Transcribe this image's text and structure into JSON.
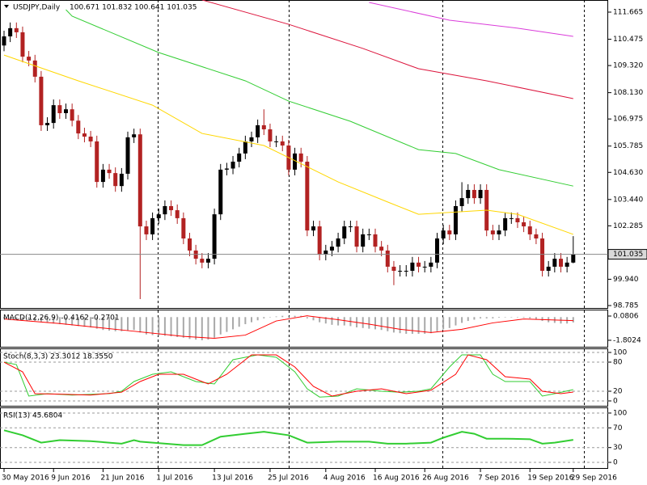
{
  "chart_data": [
    {
      "type": "candlestick",
      "title": "USDJPY,Daily",
      "ohlc_text": "100.671 101.832 100.641 101.035",
      "up_color": "#000000",
      "down_color": "#b22222",
      "categories": [
        "30 May 2016",
        null,
        null,
        null,
        null,
        null,
        null,
        null,
        "9 Jun 2016",
        null,
        null,
        null,
        null,
        null,
        null,
        null,
        "21 Jun 2016",
        null,
        null,
        null,
        null,
        null,
        null,
        null,
        null,
        "1 Jul 2016",
        null,
        null,
        null,
        null,
        null,
        null,
        null,
        null,
        "13 Jul 2016",
        null,
        null,
        null,
        null,
        null,
        null,
        null,
        null,
        "25 Jul 2016",
        null,
        null,
        null,
        null,
        null,
        null,
        null,
        null,
        "4 Aug 2016",
        null,
        null,
        null,
        null,
        null,
        null,
        null,
        "16 Aug 2016",
        null,
        null,
        null,
        null,
        null,
        null,
        null,
        "26 Aug 2016",
        null,
        null,
        null,
        null,
        null,
        null,
        null,
        null,
        "7 Sep 2016",
        null,
        null,
        null,
        null,
        null,
        null,
        null,
        "19 Sep 2016",
        null,
        null,
        null,
        null,
        null,
        null,
        "29 Sep 2016"
      ],
      "open": [
        110.2,
        110.6,
        110.96,
        110.78,
        109.71,
        109.54,
        108.83,
        106.7,
        106.8,
        107.58,
        107.23,
        107.4,
        106.9,
        106.34,
        106.2,
        105.99,
        104.21,
        104.75,
        104.6,
        104.03,
        104.57,
        106.17,
        106.3,
        102.26,
        101.91,
        102.62,
        102.79,
        103.15,
        102.97,
        102.62,
        101.73,
        101.2,
        100.84,
        100.67,
        100.84,
        102.79,
        104.75,
        104.8,
        105.1,
        105.46,
        105.99,
        106.17,
        106.7,
        106.52,
        105.99,
        105.99,
        105.81,
        104.75,
        105.46,
        105.1,
        102.08,
        102.26,
        101.02,
        101.2,
        101.37,
        101.73,
        102.26,
        102.26,
        101.37,
        101.91,
        101.91,
        101.37,
        101.2,
        100.49,
        100.31,
        100.31,
        100.31,
        100.67,
        100.49,
        100.49,
        100.67,
        101.73,
        102.08,
        101.91,
        103.15,
        103.5,
        103.86,
        103.5,
        103.86,
        102.08,
        101.91,
        102.08,
        102.62,
        102.62,
        102.44,
        102.26,
        101.91,
        101.73,
        100.31,
        100.49,
        100.84,
        100.49,
        100.671
      ],
      "high": [
        110.85,
        111.21,
        111.21,
        111.03,
        109.96,
        109.79,
        109.08,
        107.05,
        107.83,
        107.83,
        107.65,
        107.65,
        107.15,
        106.59,
        106.45,
        106.24,
        105.0,
        105.0,
        104.85,
        104.82,
        106.42,
        106.55,
        106.55,
        102.51,
        102.87,
        103.04,
        103.4,
        103.4,
        103.22,
        102.87,
        101.98,
        101.45,
        101.09,
        101.09,
        103.04,
        105.0,
        105.05,
        105.35,
        105.71,
        106.24,
        106.42,
        106.95,
        107.4,
        106.77,
        106.24,
        106.24,
        106.06,
        105.71,
        105.71,
        105.35,
        102.51,
        102.51,
        101.45,
        101.62,
        101.98,
        102.51,
        102.51,
        102.51,
        102.16,
        102.16,
        102.16,
        101.62,
        101.45,
        100.74,
        100.56,
        100.56,
        100.92,
        100.92,
        100.74,
        100.92,
        101.98,
        102.33,
        102.33,
        103.4,
        104.2,
        104.11,
        104.11,
        104.11,
        104.11,
        102.33,
        102.33,
        102.87,
        102.87,
        102.87,
        102.69,
        102.51,
        102.16,
        101.98,
        100.74,
        101.09,
        101.09,
        100.92,
        101.832
      ],
      "low": [
        109.95,
        110.35,
        110.53,
        109.46,
        109.29,
        108.58,
        106.45,
        106.45,
        106.55,
        106.98,
        106.98,
        106.65,
        106.09,
        105.95,
        105.74,
        103.96,
        103.96,
        104.35,
        103.78,
        103.78,
        104.32,
        105.92,
        99.07,
        101.66,
        101.66,
        102.37,
        102.54,
        102.72,
        102.37,
        101.48,
        100.95,
        100.59,
        100.42,
        100.42,
        100.59,
        102.54,
        104.5,
        104.55,
        104.85,
        105.21,
        105.74,
        105.92,
        106.27,
        105.74,
        105.74,
        105.56,
        104.5,
        104.5,
        104.85,
        101.83,
        101.83,
        100.77,
        100.77,
        100.95,
        101.12,
        101.48,
        102.01,
        101.12,
        101.12,
        101.66,
        101.12,
        100.95,
        100.24,
        99.68,
        100.06,
        100.06,
        100.06,
        100.24,
        100.24,
        100.24,
        100.42,
        101.48,
        101.66,
        101.66,
        102.9,
        103.25,
        103.25,
        103.25,
        101.83,
        101.66,
        101.66,
        101.83,
        102.37,
        102.19,
        102.01,
        101.66,
        101.48,
        100.06,
        100.06,
        100.24,
        100.24,
        100.24,
        100.641
      ],
      "close": [
        110.6,
        110.96,
        110.78,
        109.71,
        109.54,
        108.83,
        106.7,
        106.8,
        107.58,
        107.23,
        107.4,
        106.9,
        106.34,
        106.2,
        105.99,
        104.21,
        104.75,
        104.6,
        104.03,
        104.57,
        106.17,
        106.3,
        102.26,
        101.91,
        102.62,
        102.79,
        103.15,
        102.97,
        102.62,
        101.73,
        101.2,
        100.84,
        100.67,
        100.84,
        102.79,
        104.75,
        104.8,
        105.1,
        105.46,
        105.99,
        106.17,
        106.7,
        106.52,
        105.99,
        105.99,
        105.81,
        104.75,
        105.46,
        105.1,
        102.08,
        102.26,
        101.02,
        101.2,
        101.37,
        101.73,
        102.26,
        102.26,
        101.37,
        101.91,
        101.91,
        101.37,
        101.2,
        100.49,
        100.31,
        100.31,
        100.31,
        100.67,
        100.49,
        100.49,
        100.67,
        101.73,
        102.08,
        101.91,
        103.15,
        103.5,
        103.86,
        103.5,
        103.86,
        102.08,
        101.91,
        102.08,
        102.62,
        102.62,
        102.44,
        102.26,
        101.91,
        101.73,
        100.31,
        100.49,
        100.84,
        100.49,
        100.67,
        101.035
      ],
      "overlays": [
        {
          "color": "#ffd700",
          "x": [
            0,
            12,
            24,
            32,
            42,
            46,
            54,
            62,
            67,
            78,
            83,
            92
          ],
          "values": [
            109.78,
            108.65,
            107.58,
            106.34,
            105.81,
            105.28,
            104.21,
            103.33,
            102.79,
            102.97,
            102.79,
            101.91
          ]
        },
        {
          "color": "#32cd32",
          "x": [
            10,
            11,
            25,
            39,
            46,
            56,
            67,
            73,
            80,
            92
          ],
          "values": [
            111.77,
            111.49,
            109.89,
            108.65,
            107.76,
            106.87,
            105.63,
            105.46,
            104.75,
            104.03
          ]
        },
        {
          "color": "#dc143c",
          "x": [
            32,
            46,
            58,
            67,
            78,
            92
          ],
          "values": [
            112.2,
            111.13,
            110.07,
            109.18,
            108.65,
            107.87
          ]
        },
        {
          "color": "#da3cda",
          "x": [
            59,
            72,
            83,
            92
          ],
          "values": [
            112.09,
            111.31,
            110.96,
            110.6
          ]
        }
      ],
      "ylim": [
        98.643,
        112.197
      ],
      "yticks": [
        111.665,
        110.475,
        {
          "value": 109.32,
          "label": "109.320"
        },
        {
          "value": 108.13,
          "label": "108.130"
        },
        106.975,
        105.785,
        {
          "value": 104.63,
          "label": "104.630"
        },
        {
          "value": 103.44,
          "label": "103.440"
        },
        102.285,
        {
          "value": 99.94,
          "label": "99.940"
        },
        98.785
      ],
      "last_price": 101.035
    },
    {
      "type": "macd",
      "title": "MACD(12,26,9) -0.4162 -0.2701",
      "color": "#a9a9a9",
      "values": [
        -0.1,
        -0.1,
        -0.15,
        -0.2,
        -0.25,
        -0.3,
        -0.4,
        -0.45,
        -0.5,
        -0.55,
        -0.6,
        -0.65,
        -0.7,
        -0.75,
        -0.8,
        -0.9,
        -1.0,
        -1.05,
        -1.1,
        -1.1,
        -1.05,
        -1.0,
        -1.2,
        -1.35,
        -1.4,
        -1.45,
        -1.45,
        -1.5,
        -1.55,
        -1.6,
        -1.7,
        -1.75,
        -1.8,
        -1.75,
        -1.6,
        -1.35,
        -1.15,
        -0.95,
        -0.75,
        -0.55,
        -0.4,
        -0.25,
        -0.1,
        0.0,
        0.05,
        0.1,
        0.05,
        0.1,
        0.1,
        -0.1,
        -0.25,
        -0.4,
        -0.5,
        -0.6,
        -0.65,
        -0.65,
        -0.7,
        -0.8,
        -0.85,
        -0.9,
        -0.95,
        -1.0,
        -1.1,
        -1.2,
        -1.25,
        -1.3,
        -1.3,
        -1.3,
        -1.3,
        -1.25,
        -1.1,
        -0.95,
        -0.85,
        -0.65,
        -0.45,
        -0.3,
        -0.2,
        -0.1,
        -0.1,
        -0.1,
        -0.05,
        0.0,
        0.0,
        0.0,
        -0.05,
        -0.1,
        -0.15,
        -0.3,
        -0.4,
        -0.45,
        -0.5,
        -0.5,
        -0.4162
      ],
      "series": [
        {
          "color": "#ff0000",
          "x": [
            0,
            9,
            19,
            29,
            34,
            39,
            44,
            49,
            54,
            59,
            64,
            69,
            74,
            79,
            84,
            92
          ],
          "values": [
            -0.15,
            -0.5,
            -1.0,
            -1.5,
            -1.65,
            -1.4,
            -0.3,
            0.1,
            -0.2,
            -0.55,
            -0.95,
            -1.2,
            -0.95,
            -0.45,
            -0.15,
            -0.2701
          ]
        }
      ],
      "ylim": [
        -2.37,
        0.52
      ],
      "yticks": [
        0.0806,
        -1.8024
      ]
    },
    {
      "type": "oscillator",
      "title": "Stoch(8,3,3) 23.3012 18.3550",
      "series": [
        {
          "color": "#32cd32",
          "x": [
            0,
            2,
            4,
            7,
            11,
            17,
            19,
            21,
            24,
            27,
            31,
            34,
            37,
            41,
            44,
            47,
            49,
            51,
            54,
            57,
            61,
            64,
            67,
            69,
            72,
            74,
            77,
            79,
            81,
            85,
            87,
            89,
            92
          ],
          "values": [
            80,
            75,
            10,
            15,
            12,
            15,
            20,
            40,
            55,
            60,
            40,
            35,
            85,
            95,
            90,
            60,
            25,
            8,
            10,
            25,
            20,
            18,
            20,
            25,
            70,
            95,
            95,
            55,
            40,
            40,
            10,
            15,
            23.3012
          ]
        },
        {
          "color": "#ff0000",
          "x": [
            0,
            3,
            5,
            9,
            14,
            19,
            22,
            25,
            29,
            33,
            36,
            40,
            44,
            47,
            50,
            53,
            57,
            61,
            65,
            69,
            73,
            75,
            78,
            81,
            85,
            87,
            90,
            92
          ],
          "values": [
            80,
            60,
            15,
            14,
            12,
            18,
            40,
            55,
            55,
            35,
            55,
            95,
            95,
            70,
            30,
            10,
            20,
            25,
            15,
            22,
            55,
            95,
            85,
            50,
            45,
            20,
            15,
            18.355
          ]
        }
      ],
      "ylim": [
        -11.7,
        106.7
      ],
      "yticks": [
        100,
        80,
        20,
        0
      ]
    },
    {
      "type": "oscillator",
      "title": "RSI(13) 45.6804",
      "series": [
        {
          "color": "#32cd32",
          "x": [
            0,
            3,
            6,
            9,
            14,
            19,
            21,
            22,
            29,
            32,
            35,
            39,
            42,
            46,
            49,
            54,
            59,
            62,
            65,
            69,
            71,
            74,
            76,
            78,
            81,
            85,
            87,
            89,
            92
          ],
          "values": [
            65,
            55,
            40,
            45,
            43,
            38,
            45,
            42,
            35,
            35,
            52,
            58,
            62,
            55,
            40,
            42,
            42,
            38,
            38,
            40,
            50,
            62,
            58,
            48,
            48,
            47,
            38,
            40,
            45.6804
          ]
        }
      ],
      "ylim": [
        -13.1,
        109.8
      ],
      "yticks": [
        100,
        70,
        30,
        0
      ]
    }
  ]
}
